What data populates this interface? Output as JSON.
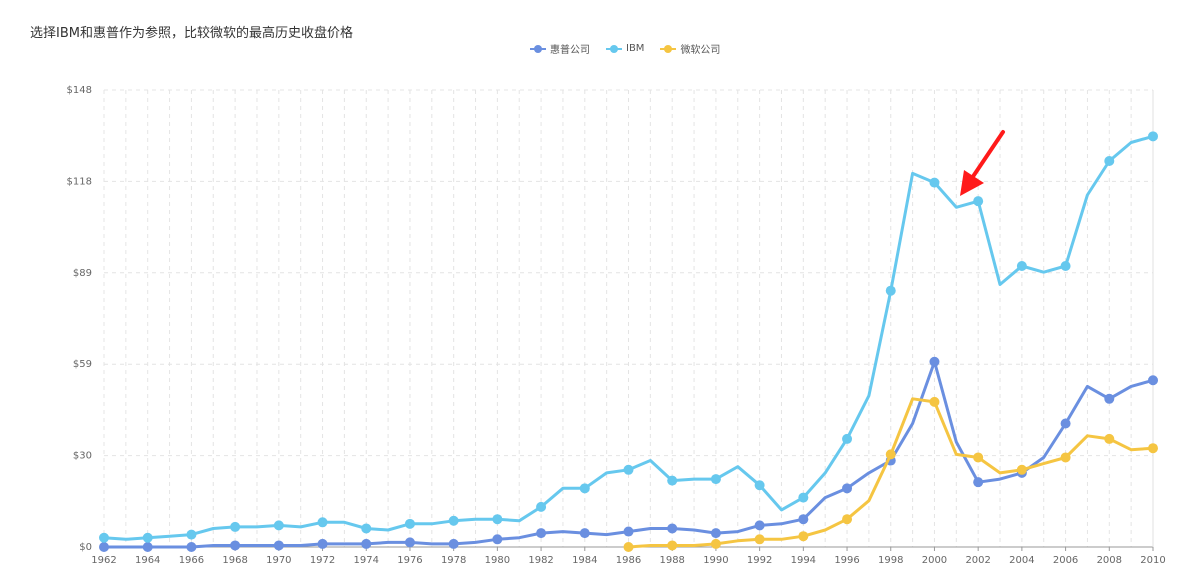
{
  "title": "选择IBM和惠普作为参照，比较微软的最高历史收盘价格",
  "chart_data": {
    "type": "line",
    "title": "选择IBM和惠普作为参照，比较微软的最高历史收盘价格",
    "xlabel": "",
    "ylabel": "",
    "x_range": [
      1962,
      2010
    ],
    "x_ticks": [
      "1962",
      "1964",
      "1966",
      "1968",
      "1970",
      "1972",
      "1974",
      "1976",
      "1978",
      "1980",
      "1982",
      "1984",
      "1986",
      "1988",
      "1990",
      "1992",
      "1994",
      "1996",
      "1998",
      "2000",
      "2002",
      "2004",
      "2006",
      "2008",
      "2010"
    ],
    "y_range": [
      0,
      148
    ],
    "y_ticks": [
      "$0",
      "$30",
      "$59",
      "$89",
      "$118",
      "$148"
    ],
    "grid": true,
    "legend_position": "top-center",
    "series": [
      {
        "name": "惠普公司",
        "color": "#6a8fe0",
        "x": [
          1962,
          1963,
          1964,
          1965,
          1966,
          1967,
          1968,
          1969,
          1970,
          1971,
          1972,
          1973,
          1974,
          1975,
          1976,
          1977,
          1978,
          1979,
          1980,
          1981,
          1982,
          1983,
          1984,
          1985,
          1986,
          1987,
          1988,
          1989,
          1990,
          1991,
          1992,
          1993,
          1994,
          1995,
          1996,
          1997,
          1998,
          1999,
          2000,
          2001,
          2002,
          2003,
          2004,
          2005,
          2006,
          2007,
          2008,
          2009,
          2010
        ],
        "values": [
          0,
          0,
          0,
          0,
          0,
          0.5,
          0.5,
          0.5,
          0.5,
          0.5,
          1,
          1,
          1,
          1.5,
          1.5,
          1,
          1,
          1.5,
          2.5,
          3,
          4.5,
          5,
          4.5,
          4,
          5,
          6,
          6,
          5.5,
          4.5,
          5,
          7,
          7.5,
          9,
          16,
          19,
          24,
          28,
          40,
          60,
          34,
          21,
          22,
          24,
          29,
          40,
          52,
          48,
          52,
          54
        ],
        "marked": [
          1962,
          1964,
          1966,
          1968,
          1970,
          1972,
          1974,
          1976,
          1978,
          1980,
          1982,
          1984,
          1986,
          1988,
          1990,
          1992,
          1994,
          1996,
          1998,
          2000,
          2002,
          2004,
          2006,
          2008,
          2010
        ]
      },
      {
        "name": "IBM",
        "color": "#66c8ee",
        "x": [
          1962,
          1963,
          1964,
          1965,
          1966,
          1967,
          1968,
          1969,
          1970,
          1971,
          1972,
          1973,
          1974,
          1975,
          1976,
          1977,
          1978,
          1979,
          1980,
          1981,
          1982,
          1983,
          1984,
          1985,
          1986,
          1987,
          1988,
          1989,
          1990,
          1991,
          1992,
          1993,
          1994,
          1995,
          1996,
          1997,
          1998,
          1999,
          2000,
          2001,
          2002,
          2003,
          2004,
          2005,
          2006,
          2007,
          2008,
          2009,
          2010
        ],
        "values": [
          3,
          2.5,
          3,
          3.5,
          4,
          6,
          6.5,
          6.5,
          7,
          6.5,
          8,
          8,
          6,
          5.5,
          7.5,
          7.5,
          8.5,
          9,
          9,
          8.5,
          13,
          19,
          19,
          24,
          25,
          28,
          21.5,
          22,
          22,
          26,
          20,
          12,
          16,
          24,
          35,
          49,
          83,
          121,
          118,
          110,
          112,
          85,
          91,
          89,
          91,
          114,
          125,
          131,
          133
        ],
        "marked": [
          1962,
          1964,
          1966,
          1968,
          1970,
          1972,
          1974,
          1976,
          1978,
          1980,
          1982,
          1984,
          1986,
          1988,
          1990,
          1992,
          1994,
          1996,
          1998,
          2000,
          2002,
          2004,
          2006,
          2008,
          2010
        ]
      },
      {
        "name": "微软公司",
        "color": "#f5c542",
        "x": [
          1986,
          1987,
          1988,
          1989,
          1990,
          1991,
          1992,
          1993,
          1994,
          1995,
          1996,
          1997,
          1998,
          1999,
          2000,
          2001,
          2002,
          2003,
          2004,
          2005,
          2006,
          2007,
          2008,
          2009,
          2010
        ],
        "values": [
          0,
          0.5,
          0.5,
          0.5,
          1,
          2,
          2.5,
          2.5,
          3.5,
          5.5,
          9,
          15,
          30,
          48,
          47,
          30,
          29,
          24,
          25,
          27,
          29,
          36,
          35,
          31.5,
          32
        ],
        "marked": [
          1986,
          1988,
          1990,
          1992,
          1994,
          1996,
          1998,
          2000,
          2002,
          2004,
          2006,
          2008,
          2010
        ]
      }
    ]
  }
}
